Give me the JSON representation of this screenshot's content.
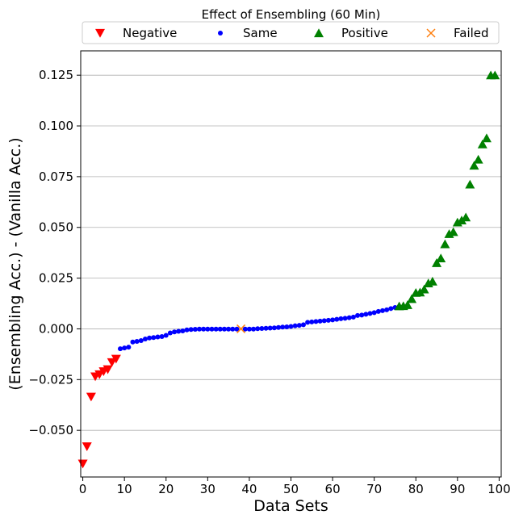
{
  "chart_data": {
    "type": "scatter",
    "title": "Effect of Ensembling (60 Min)",
    "xlabel": "Data Sets",
    "ylabel": "(Ensembling Acc.) - (Vanilla Acc.)",
    "xlim": [
      -0.5,
      100.5
    ],
    "ylim": [
      -0.073,
      0.137
    ],
    "xticks": [
      0,
      10,
      20,
      30,
      40,
      50,
      60,
      70,
      80,
      90,
      100
    ],
    "xtick_labels": [
      "0",
      "10",
      "20",
      "30",
      "40",
      "50",
      "60",
      "70",
      "80",
      "90",
      "100"
    ],
    "yticks": [
      -0.05,
      -0.025,
      0.0,
      0.025,
      0.05,
      0.075,
      0.1,
      0.125
    ],
    "ytick_labels": [
      "−0.050",
      "−0.025",
      "0.000",
      "0.025",
      "0.050",
      "0.075",
      "0.100",
      "0.125"
    ],
    "grid": "horizontal",
    "legend": {
      "title": "Effect of Ensembling (60 Min)",
      "placement": "top, above plot",
      "entries": [
        {
          "name": "Negative",
          "marker": "triangle-down",
          "color": "#ff0000"
        },
        {
          "name": "Same",
          "marker": "dot",
          "color": "#0000ff"
        },
        {
          "name": "Positive",
          "marker": "triangle-up",
          "color": "#008000"
        },
        {
          "name": "Failed",
          "marker": "x",
          "color": "#ff7f0e"
        }
      ]
    },
    "series": [
      {
        "name": "Negative",
        "color": "#ff0000",
        "marker": "triangle-down",
        "x": [
          0,
          1,
          2,
          3,
          4,
          5,
          6,
          7,
          8
        ],
        "y": [
          -0.0665,
          -0.058,
          -0.0335,
          -0.0235,
          -0.0225,
          -0.021,
          -0.02,
          -0.0165,
          -0.0148
        ]
      },
      {
        "name": "Same",
        "color": "#0000ff",
        "marker": "dot",
        "x": [
          9,
          10,
          11,
          12,
          13,
          14,
          15,
          16,
          17,
          18,
          19,
          20,
          21,
          22,
          23,
          24,
          25,
          26,
          27,
          28,
          29,
          30,
          31,
          32,
          33,
          34,
          35,
          36,
          37,
          39,
          40,
          41,
          42,
          43,
          44,
          45,
          46,
          47,
          48,
          49,
          50,
          51,
          52,
          53,
          54,
          55,
          56,
          57,
          58,
          59,
          60,
          61,
          62,
          63,
          64,
          65,
          66,
          67,
          68,
          69,
          70,
          71,
          72,
          73,
          74,
          75
        ],
        "y": [
          -0.0098,
          -0.0094,
          -0.009,
          -0.0065,
          -0.0062,
          -0.0058,
          -0.005,
          -0.0045,
          -0.0043,
          -0.004,
          -0.0038,
          -0.0032,
          -0.002,
          -0.0015,
          -0.0012,
          -0.001,
          -0.0005,
          -0.0003,
          -0.0002,
          -0.0001,
          -0.0001,
          -0.0001,
          -0.0001,
          -0.0001,
          -0.0001,
          -0.0001,
          -0.0001,
          -0.0001,
          -0.0001,
          -0.0001,
          -0.0001,
          -0.0001,
          0.0001,
          0.0002,
          0.0003,
          0.0004,
          0.0005,
          0.0007,
          0.0009,
          0.001,
          0.0012,
          0.0015,
          0.0017,
          0.002,
          0.0032,
          0.0034,
          0.0036,
          0.0038,
          0.004,
          0.0042,
          0.0044,
          0.0047,
          0.005,
          0.0052,
          0.0055,
          0.0058,
          0.0066,
          0.0068,
          0.0072,
          0.0076,
          0.008,
          0.0086,
          0.009,
          0.0094,
          0.01,
          0.0105
        ]
      },
      {
        "name": "Positive",
        "color": "#008000",
        "marker": "triangle-up",
        "x": [
          76,
          77,
          78,
          79,
          80,
          81,
          82,
          83,
          84,
          85,
          86,
          87,
          88,
          89,
          90,
          91,
          92,
          93,
          94,
          95,
          96,
          97,
          98,
          99
        ],
        "y": [
          0.0112,
          0.0113,
          0.0118,
          0.0148,
          0.0178,
          0.018,
          0.0195,
          0.0225,
          0.0234,
          0.0325,
          0.0348,
          0.0418,
          0.0468,
          0.0478,
          0.0525,
          0.0535,
          0.055,
          0.0712,
          0.0805,
          0.0835,
          0.091,
          0.094,
          0.125,
          0.125
        ]
      },
      {
        "name": "Failed",
        "color": "#ff7f0e",
        "marker": "x",
        "x": [
          38
        ],
        "y": [
          0.0
        ]
      }
    ]
  }
}
